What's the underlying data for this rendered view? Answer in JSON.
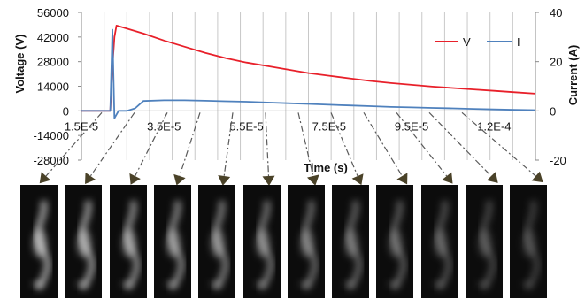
{
  "chart_data": {
    "type": "line",
    "xlabel": "Time (s)",
    "ylabel_left": "Voltage (V)",
    "ylabel_right": "Current (A)",
    "x_tick_labels": [
      "1.5E-5",
      "3.5E-5",
      "5.5E-5",
      "7.5E-5",
      "9.5E-5",
      "1.2E-4"
    ],
    "x_ticks": [
      1.5e-05,
      3.5e-05,
      5.5e-05,
      7.5e-05,
      9.5e-05,
      0.000115
    ],
    "xlim": [
      1.5e-05,
      0.000125
    ],
    "y_left_ticks": [
      56000,
      42000,
      28000,
      14000,
      0,
      -14000,
      -28000
    ],
    "y_left_tick_labels": [
      "56000",
      "42000",
      "28000",
      "14000",
      "0",
      "-14000",
      "-28000"
    ],
    "ylim_left": [
      -28000,
      56000
    ],
    "y_right_ticks": [
      40,
      20,
      0,
      -20
    ],
    "y_right_tick_labels": [
      "40",
      "20",
      "0",
      "-20"
    ],
    "ylim_right": [
      -20,
      40
    ],
    "grid": "vertical",
    "legend_position": "top-right",
    "series": [
      {
        "name": "V",
        "axis": "left",
        "color": "#e8202a",
        "x": [
          1.5e-05,
          2.2e-05,
          2.25e-05,
          2.3e-05,
          2.35e-05,
          2.5e-05,
          3e-05,
          3.5e-05,
          4e-05,
          4.5e-05,
          5e-05,
          5.5e-05,
          6e-05,
          6.5e-05,
          7e-05,
          7.5e-05,
          8e-05,
          8.5e-05,
          9e-05,
          9.5e-05,
          0.0001,
          0.000105,
          0.00011,
          0.000115,
          0.00012,
          0.000125
        ],
        "values": [
          0,
          0,
          25000,
          42000,
          48500,
          47500,
          44000,
          40000,
          36500,
          33000,
          30000,
          27500,
          25500,
          23500,
          21500,
          20000,
          18500,
          17000,
          15800,
          14800,
          13800,
          13000,
          12200,
          11400,
          10600,
          9800
        ]
      },
      {
        "name": "I",
        "axis": "right",
        "color": "#4f81bd",
        "x": [
          1.5e-05,
          2.2e-05,
          2.25e-05,
          2.3e-05,
          2.4e-05,
          2.6e-05,
          2.8e-05,
          3e-05,
          3.5e-05,
          4e-05,
          4.5e-05,
          5e-05,
          5.5e-05,
          6e-05,
          6.5e-05,
          7e-05,
          7.5e-05,
          8e-05,
          8.5e-05,
          9e-05,
          9.5e-05,
          0.0001,
          0.000105,
          0.00011,
          0.000115,
          0.00012,
          0.000125
        ],
        "values": [
          0,
          0,
          33,
          -3,
          0,
          0,
          1,
          4,
          4.3,
          4.3,
          4.1,
          3.9,
          3.7,
          3.4,
          3.1,
          2.8,
          2.5,
          2.2,
          1.9,
          1.6,
          1.4,
          1.2,
          1.0,
          0.8,
          0.6,
          0.4,
          0.3
        ]
      }
    ],
    "frame_count": 12
  }
}
